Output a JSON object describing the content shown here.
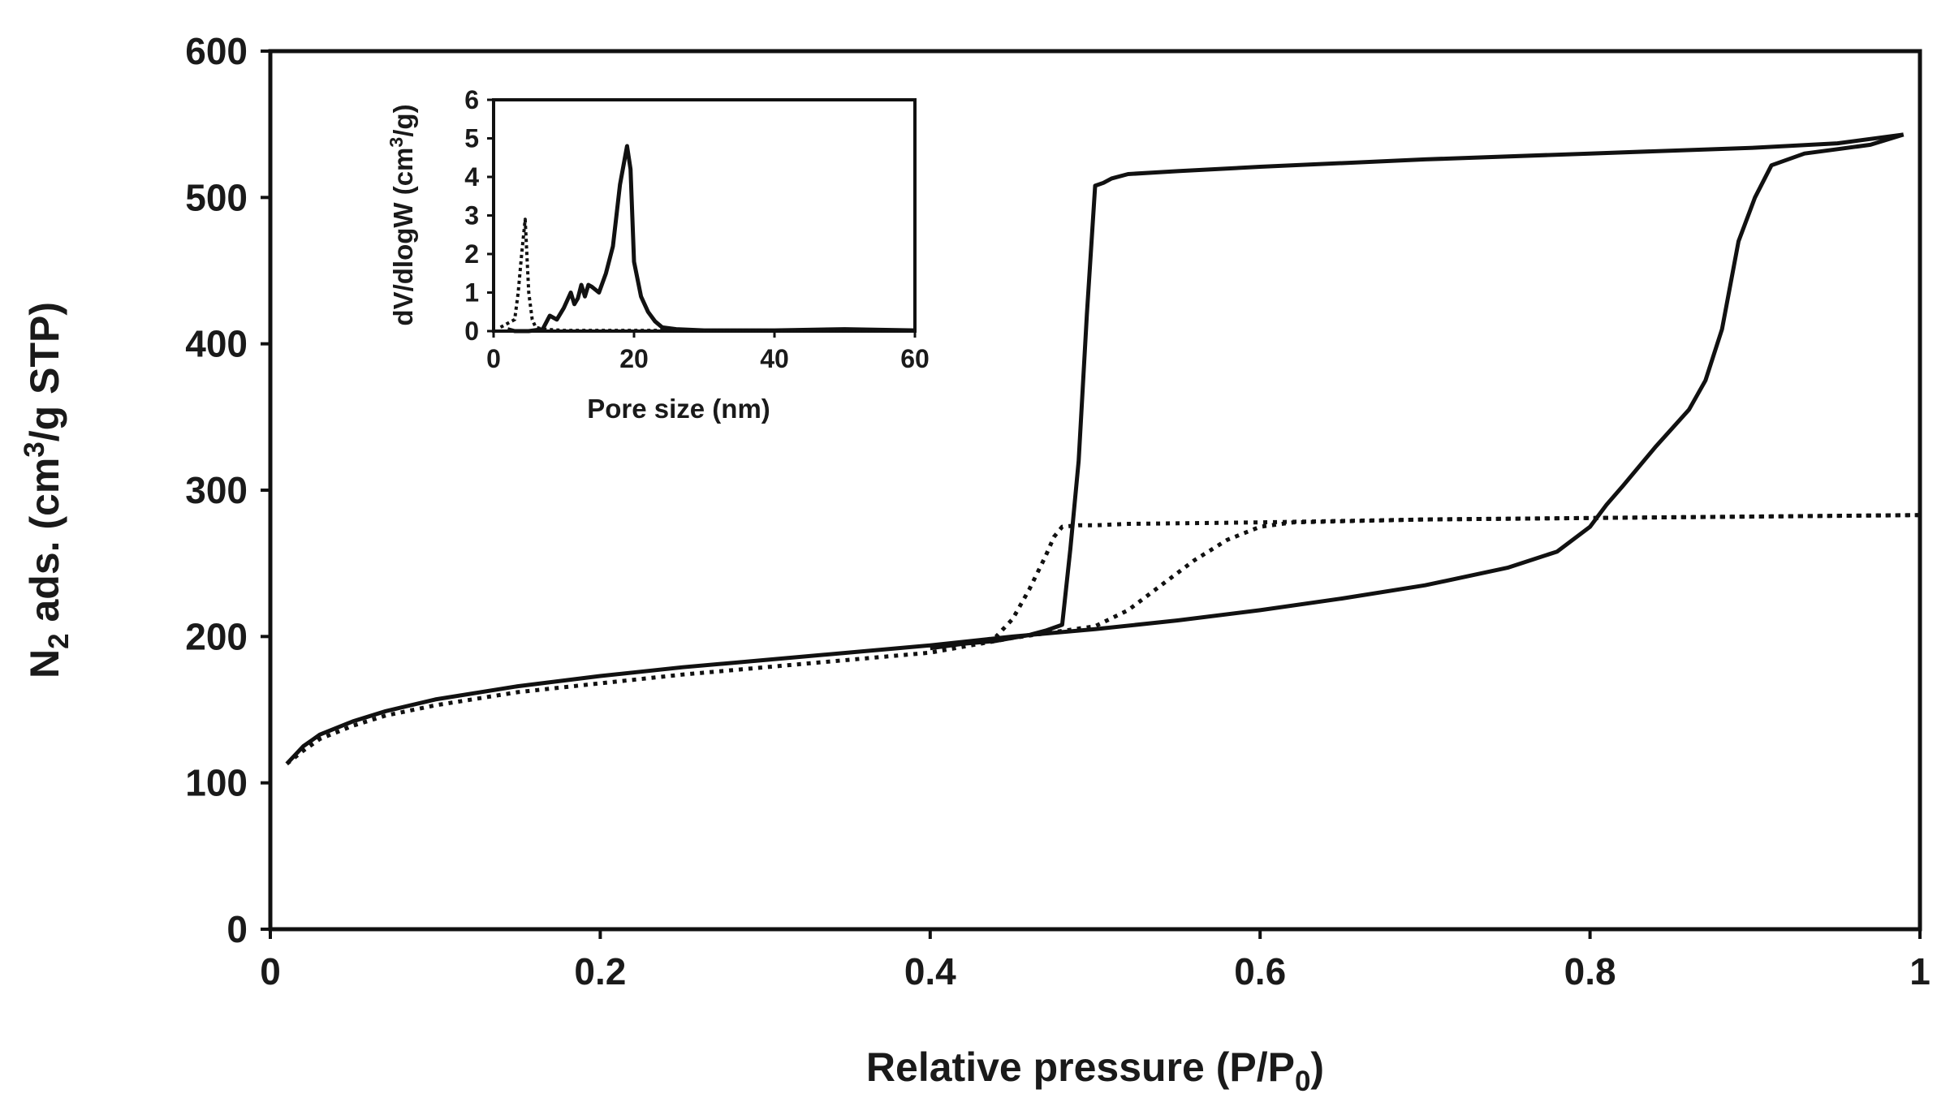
{
  "chart_data": [
    {
      "type": "line",
      "name": "isotherm",
      "xlabel": {
        "text": "Relative pressure (P/P",
        "sub": "0",
        "tail": ")"
      },
      "ylabel": {
        "pre": "N",
        "sub": "2",
        "mid": " ads. (cm",
        "sup": "3",
        "tail": "/g STP)"
      },
      "xlim": [
        0,
        1
      ],
      "ylim": [
        0,
        600
      ],
      "xticks": [
        "0",
        "0.2",
        "0.4",
        "0.6",
        "0.8",
        "1"
      ],
      "yticks": [
        "0",
        "100",
        "200",
        "300",
        "400",
        "500",
        "600"
      ],
      "grid": false,
      "series": [
        {
          "name": "solid-adsorption",
          "style": "solid",
          "x": [
            0.01,
            0.02,
            0.03,
            0.05,
            0.07,
            0.1,
            0.15,
            0.2,
            0.25,
            0.3,
            0.35,
            0.4,
            0.45,
            0.5,
            0.55,
            0.6,
            0.65,
            0.7,
            0.75,
            0.78,
            0.8,
            0.81,
            0.82,
            0.84,
            0.86,
            0.87,
            0.88,
            0.89,
            0.9,
            0.91,
            0.93,
            0.95,
            0.97,
            0.99
          ],
          "y": [
            113,
            125,
            133,
            142,
            149,
            157,
            166,
            173,
            179,
            184,
            189,
            194,
            200,
            205,
            211,
            218,
            226,
            235,
            247,
            258,
            275,
            290,
            303,
            330,
            355,
            375,
            410,
            470,
            500,
            522,
            530,
            533,
            536,
            543
          ]
        },
        {
          "name": "solid-desorption",
          "style": "solid",
          "x": [
            0.99,
            0.95,
            0.9,
            0.8,
            0.7,
            0.6,
            0.55,
            0.52,
            0.51,
            0.505,
            0.5,
            0.495,
            0.49,
            0.485,
            0.48,
            0.47,
            0.46,
            0.45,
            0.44,
            0.42,
            0.4
          ],
          "y": [
            543,
            537,
            534,
            530,
            526,
            521,
            518,
            516,
            513,
            510,
            508,
            420,
            320,
            260,
            208,
            204,
            201,
            199,
            197,
            195,
            192
          ]
        },
        {
          "name": "dotted-adsorption",
          "style": "dotted",
          "x": [
            0.01,
            0.02,
            0.03,
            0.05,
            0.07,
            0.1,
            0.15,
            0.2,
            0.25,
            0.3,
            0.35,
            0.4,
            0.45,
            0.5,
            0.52,
            0.54,
            0.56,
            0.58,
            0.6,
            0.62,
            0.7,
            0.8,
            0.9,
            1.0
          ],
          "y": [
            113,
            122,
            130,
            139,
            146,
            153,
            162,
            168,
            174,
            179,
            184,
            189,
            199,
            207,
            218,
            235,
            252,
            266,
            275,
            278,
            280,
            281,
            282,
            283
          ]
        },
        {
          "name": "dotted-desorption",
          "style": "dotted",
          "x": [
            1.0,
            0.9,
            0.8,
            0.7,
            0.6,
            0.52,
            0.5,
            0.49,
            0.48,
            0.475,
            0.47,
            0.46,
            0.45,
            0.44,
            0.43
          ],
          "y": [
            283,
            282,
            281,
            280,
            278,
            277,
            276,
            276,
            275,
            268,
            255,
            232,
            212,
            200,
            196
          ]
        }
      ]
    },
    {
      "type": "line",
      "name": "inset-pore-size-distribution",
      "xlabel": {
        "text": "Pore size (nm)"
      },
      "ylabel": {
        "pre": "dV/dlogW (cm",
        "sup": "3",
        "tail": "/g)"
      },
      "xlim": [
        0,
        60
      ],
      "ylim": [
        0,
        6
      ],
      "xticks": [
        "0",
        "20",
        "40",
        "60"
      ],
      "yticks": [
        "0",
        "1",
        "2",
        "3",
        "4",
        "5",
        "6"
      ],
      "grid": false,
      "series": [
        {
          "name": "solid-psd",
          "style": "solid",
          "x": [
            2,
            3,
            5,
            7,
            8,
            9,
            10,
            11,
            11.5,
            12,
            12.5,
            13,
            13.5,
            14,
            15,
            16,
            17,
            18,
            19,
            19.5,
            20,
            21,
            22,
            23,
            24,
            26,
            30,
            40,
            50,
            60
          ],
          "y": [
            0.05,
            0.0,
            0.0,
            0.05,
            0.4,
            0.3,
            0.6,
            1.0,
            0.7,
            0.85,
            1.2,
            0.9,
            1.2,
            1.15,
            1.0,
            1.5,
            2.2,
            3.8,
            4.8,
            4.2,
            1.8,
            0.9,
            0.5,
            0.25,
            0.1,
            0.05,
            0.02,
            0.02,
            0.05,
            0.02
          ]
        },
        {
          "name": "dotted-psd",
          "style": "dotted",
          "x": [
            1,
            2,
            3,
            3.5,
            4,
            4.5,
            5,
            5.5,
            6,
            7,
            10,
            20,
            40,
            60
          ],
          "y": [
            0.1,
            0.2,
            0.3,
            1.0,
            2.0,
            2.9,
            1.0,
            0.3,
            0.1,
            0.05,
            0.02,
            0.02,
            0.02,
            0.02
          ]
        }
      ]
    }
  ]
}
